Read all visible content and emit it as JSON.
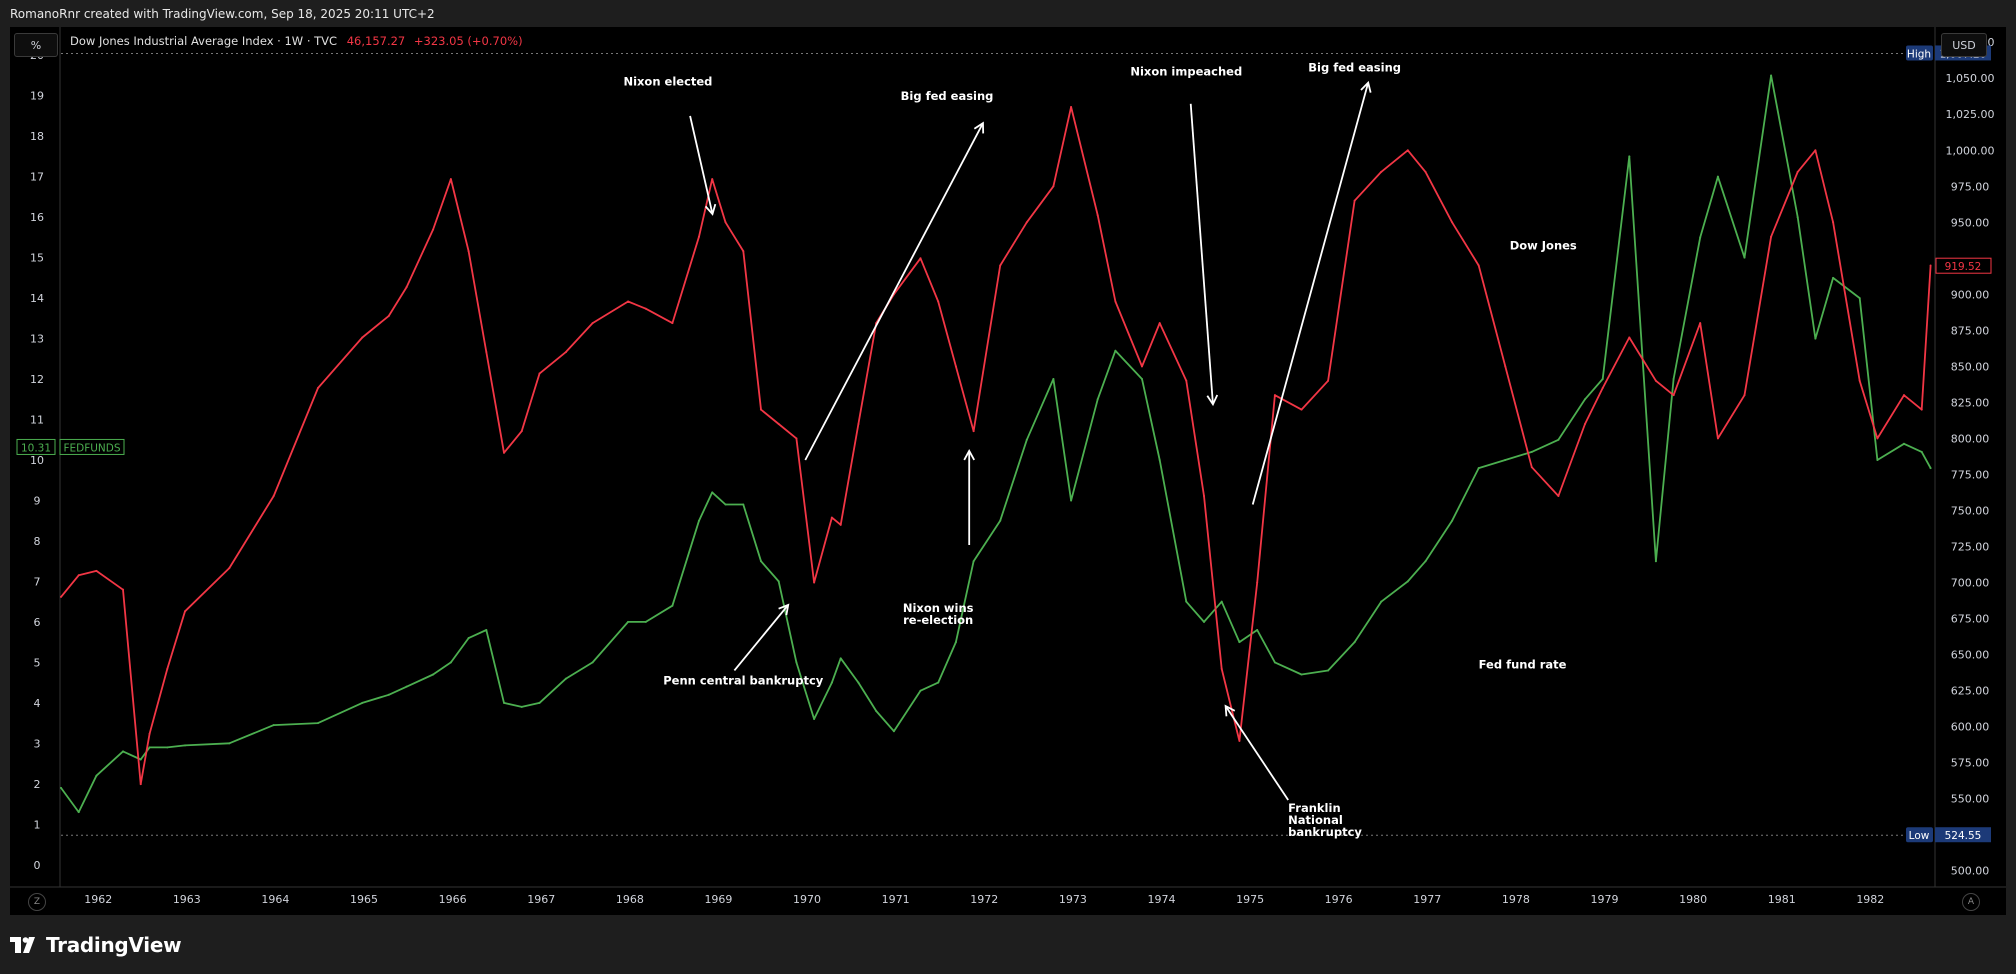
{
  "header": {
    "credit": "RomanoRnr created with TradingView.com, Sep 18, 2025 20:11 UTC+2"
  },
  "toolbar": {
    "left_scale_button": "%",
    "right_currency_button": "USD",
    "bottom_left_button": "Z",
    "bottom_right_button": "A"
  },
  "legend": {
    "symbol": "Dow Jones Industrial Average Index · 1W · TVC",
    "price": "46,157.27",
    "change": "+323.05 (+0.70%)"
  },
  "brand": {
    "name": "TradingView"
  },
  "colors": {
    "dow": "#f23645",
    "fed": "#4caf50",
    "annotation": "#ffffff",
    "high_low_badge": "#1c3a78",
    "background": "#000000",
    "chrome": "#1e1e1e"
  },
  "chart_data": {
    "type": "line",
    "title": "",
    "x": [
      1961.6,
      1961.8,
      1962.0,
      1962.3,
      1962.5,
      1962.6,
      1962.8,
      1963.0,
      1963.5,
      1964.0,
      1964.5,
      1965.0,
      1965.3,
      1965.5,
      1965.8,
      1966.0,
      1966.2,
      1966.4,
      1966.6,
      1966.8,
      1967.0,
      1967.3,
      1967.6,
      1968.0,
      1968.2,
      1968.5,
      1968.8,
      1968.95,
      1969.1,
      1969.3,
      1969.5,
      1969.7,
      1969.9,
      1970.1,
      1970.3,
      1970.4,
      1970.6,
      1970.8,
      1971.0,
      1971.3,
      1971.5,
      1971.7,
      1971.9,
      1972.2,
      1972.5,
      1972.8,
      1973.0,
      1973.3,
      1973.5,
      1973.8,
      1974.0,
      1974.3,
      1974.5,
      1974.7,
      1974.9,
      1975.1,
      1975.3,
      1975.6,
      1975.9,
      1976.2,
      1976.5,
      1976.8,
      1977.0,
      1977.3,
      1977.6,
      1977.9,
      1978.2,
      1978.5,
      1978.8,
      1979.0,
      1979.3,
      1979.6,
      1979.8,
      1980.1,
      1980.3,
      1980.6,
      1980.9,
      1981.2,
      1981.4,
      1981.6,
      1981.9,
      1982.1,
      1982.4,
      1982.6,
      1982.7
    ],
    "series": [
      {
        "name": "Dow Jones",
        "color": "#f23645",
        "axis": "right",
        "values": [
          690,
          705,
          708,
          695,
          560,
          595,
          640,
          680,
          710,
          760,
          835,
          870,
          885,
          905,
          945,
          980,
          930,
          860,
          790,
          805,
          845,
          860,
          880,
          895,
          890,
          880,
          940,
          980,
          950,
          930,
          820,
          810,
          800,
          700,
          745,
          740,
          810,
          880,
          900,
          925,
          895,
          850,
          805,
          920,
          950,
          975,
          1030,
          955,
          895,
          850,
          880,
          840,
          760,
          640,
          590,
          700,
          830,
          820,
          840,
          965,
          985,
          1000,
          985,
          950,
          920,
          850,
          780,
          760,
          810,
          835,
          870,
          840,
          830,
          880,
          800,
          830,
          940,
          985,
          1000,
          950,
          840,
          800,
          830,
          820,
          920
        ]
      },
      {
        "name": "FEDFUNDS",
        "color": "#4caf50",
        "axis": "left",
        "values": [
          1.9,
          1.3,
          2.2,
          2.8,
          2.6,
          2.9,
          2.9,
          2.95,
          3.0,
          3.45,
          3.5,
          4.0,
          4.2,
          4.4,
          4.7,
          5.0,
          5.6,
          5.8,
          4.0,
          3.9,
          4.0,
          4.6,
          5.0,
          6.0,
          6.0,
          6.4,
          8.5,
          9.2,
          8.9,
          8.9,
          7.5,
          7.0,
          5.0,
          3.6,
          4.5,
          5.1,
          4.5,
          3.8,
          3.3,
          4.3,
          4.5,
          5.5,
          7.5,
          8.5,
          10.5,
          12.0,
          9.0,
          11.5,
          12.7,
          12.0,
          10.0,
          6.5,
          6.0,
          6.5,
          5.5,
          5.8,
          5.0,
          4.7,
          4.8,
          5.5,
          6.5,
          7.0,
          7.5,
          8.5,
          9.8,
          10.0,
          10.2,
          10.5,
          11.5,
          12.0,
          17.5,
          7.5,
          12.0,
          15.5,
          17.0,
          15.0,
          19.5,
          16.0,
          13.0,
          14.5,
          14.0,
          10.0,
          10.4,
          10.2,
          9.8
        ]
      }
    ],
    "xlabel": "",
    "ylabel_left": "",
    "ylabel_right": "",
    "xlim": [
      1961.6,
      1982.75
    ],
    "ylim_left": [
      -0.5,
      20.5
    ],
    "ylim_right": [
      490,
      1080
    ],
    "x_ticks": [
      "1962",
      "1963",
      "1964",
      "1965",
      "1966",
      "1967",
      "1968",
      "1969",
      "1970",
      "1971",
      "1972",
      "1973",
      "1974",
      "1975",
      "1976",
      "1977",
      "1978",
      "1979",
      "1980",
      "1981",
      "1982"
    ],
    "left_ticks": [
      "0",
      "1",
      "2",
      "3",
      "4",
      "5",
      "6",
      "7",
      "8",
      "9",
      "10",
      "11",
      "12",
      "13",
      "14",
      "15",
      "16",
      "17",
      "18",
      "19",
      "20"
    ],
    "right_ticks": [
      "500.00",
      "525.00",
      "550.00",
      "575.00",
      "600.00",
      "625.00",
      "650.00",
      "675.00",
      "700.00",
      "725.00",
      "750.00",
      "775.00",
      "800.00",
      "825.00",
      "850.00",
      "875.00",
      "900.00",
      "925.00",
      "950.00",
      "975.00",
      "1,000.00",
      "1,025.00",
      "1,050.00",
      "1,075.00"
    ],
    "high": {
      "label": "High",
      "value": "1,067.20",
      "y": 1067.2
    },
    "low": {
      "label": "Low",
      "value": "524.55",
      "y": 524.55
    },
    "last_dow": {
      "value": "919.52",
      "y": 919.52
    },
    "last_fed": {
      "value": "10.31",
      "label": "FEDFUNDS",
      "y": 10.31
    },
    "annotations": [
      {
        "text": "Nixon elected",
        "tx": 1968.45,
        "ty": 19.25,
        "ax1": 1968.7,
        "ay1": 18.5,
        "ax2": 1968.95,
        "ay2": 16.1
      },
      {
        "text": "Big fed easing",
        "tx": 1971.6,
        "ty": 18.9,
        "ax1": 1970.0,
        "ay1": 10.0,
        "ax2": 1972.0,
        "ay2": 18.3
      },
      {
        "text": "Nixon impeached",
        "tx": 1974.3,
        "ty": 19.5,
        "ax1": 1974.35,
        "ay1": 18.8,
        "ax2": 1974.6,
        "ay2": 11.4
      },
      {
        "text": "Big fed easing",
        "tx": 1976.2,
        "ty": 19.6,
        "ax1": 1975.05,
        "ay1": 8.9,
        "ax2": 1976.35,
        "ay2": 19.3
      },
      {
        "text": "Dow Jones",
        "tx": 1977.95,
        "ty": 15.2,
        "ax1": null,
        "ay1": null,
        "ax2": null,
        "ay2": null
      },
      {
        "text": "Penn central bankruptcy",
        "tx": 1969.3,
        "ty": 4.45,
        "ax1": 1969.2,
        "ay1": 4.8,
        "ax2": 1969.8,
        "ay2": 6.4
      },
      {
        "text": "Nixon wins re-election",
        "tx": 1971.5,
        "ty": 6.25,
        "ax1": null,
        "ay1": null,
        "ax2": null,
        "ay2": null
      },
      {
        "text": "",
        "tx": null,
        "ty": null,
        "ax1": 1971.85,
        "ay1": 7.9,
        "ax2": 1971.85,
        "ay2": 10.2
      },
      {
        "text": "Fed fund rate",
        "tx": 1977.6,
        "ty": 4.85,
        "ax1": null,
        "ay1": null,
        "ax2": null,
        "ay2": null
      },
      {
        "text": "Franklin National bankruptcy",
        "tx": 1975.45,
        "ty": 1.3,
        "ax1": 1975.45,
        "ay1": 1.6,
        "ax2": 1974.75,
        "ay2": 3.9
      }
    ]
  }
}
